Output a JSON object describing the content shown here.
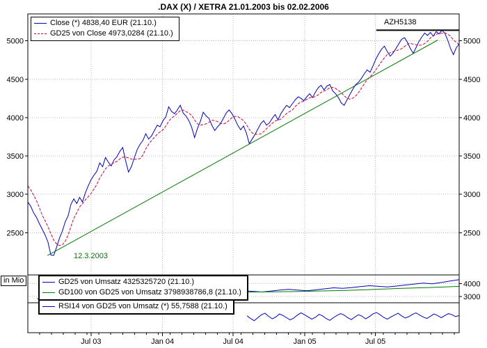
{
  "title": ".DAX (X) / XETRA 21.01.2003 bis 02.02.2006",
  "legend_main": {
    "close_label": "Close (*) 4838,40 EUR (21.10.)",
    "gd25_label": "GD25 von Close 4973,0284 (21.10.)"
  },
  "volume_panel": {
    "unit_label": "in Mio",
    "gd25_label": "GD25 von Umsatz 4325325720 (21.10.)",
    "gd100_label": "GD100 von GD25 von Umsatz 3798938786,8 (21.10.)"
  },
  "rsi_panel": {
    "rsi_label": "RSI14 von GD25 von Umsatz (*) 55,7588 (21.10.)"
  },
  "annotations": {
    "trend_start_date": "12.3.2003",
    "resistance_label": "AZH5138"
  },
  "colors": {
    "close": "#0000bf",
    "gd25": "#cc0033",
    "trend": "#007a00",
    "volume_gd25": "#0000bf",
    "volume_gd100": "#007a00",
    "rsi": "#0000bf",
    "grid": "#b8b8b8",
    "frame": "#000000",
    "resistance": "#000000"
  },
  "x_axis": {
    "months_total": 36.4,
    "ticks": [
      {
        "label": "Jul 03",
        "month": 5.33
      },
      {
        "label": "Jan 04",
        "month": 11.37
      },
      {
        "label": "Jul 04",
        "month": 17.33
      },
      {
        "label": "Jan 05",
        "month": 23.37
      },
      {
        "label": "Jul 05",
        "month": 29.33
      }
    ]
  },
  "chart_data": [
    {
      "type": "line",
      "title": ".DAX (X) / XETRA 21.01.2003 bis 02.02.2006",
      "x_range": [
        "21.01.2003",
        "02.02.2006"
      ],
      "ylim": [
        1950,
        5350
      ],
      "yticks": [
        2500,
        3000,
        3500,
        4000,
        4500,
        5000
      ],
      "series": [
        {
          "name": "Close",
          "color_key": "close",
          "start_month": 0,
          "values": [
            2900,
            2845,
            2760,
            2700,
            2620,
            2545,
            2470,
            2380,
            2210,
            2203,
            2310,
            2430,
            2520,
            2640,
            2720,
            2870,
            2940,
            2880,
            2960,
            2900,
            3020,
            3110,
            3190,
            3250,
            3300,
            3410,
            3360,
            3480,
            3420,
            3370,
            3450,
            3490,
            3560,
            3610,
            3440,
            3290,
            3360,
            3470,
            3580,
            3650,
            3700,
            3790,
            3720,
            3760,
            3830,
            3900,
            3880,
            3960,
            4010,
            4140,
            4080,
            4050,
            4100,
            4160,
            4060,
            4020,
            3960,
            3870,
            3740,
            3860,
            3950,
            4070,
            4020,
            3990,
            3900,
            3830,
            3880,
            3920,
            3990,
            4060,
            4100,
            4050,
            3980,
            3900,
            3840,
            3890,
            3800,
            3660,
            3720,
            3780,
            3850,
            3920,
            3960,
            3900,
            3930,
            3990,
            4040,
            3970,
            4050,
            4110,
            4160,
            4130,
            4180,
            4230,
            4270,
            4250,
            4220,
            4270,
            4310,
            4260,
            4330,
            4390,
            4420,
            4360,
            4410,
            4430,
            4350,
            4310,
            4260,
            4190,
            4160,
            4230,
            4300,
            4370,
            4430,
            4460,
            4510,
            4570,
            4620,
            4590,
            4670,
            4760,
            4830,
            4890,
            4930,
            4860,
            4800,
            4840,
            4900,
            4960,
            5020,
            5040,
            4980,
            4900,
            4838,
            4910,
            4990,
            5050,
            5100,
            5070,
            5110,
            5060,
            5120,
            5090,
            5138,
            5100,
            5010,
            4900,
            4820,
            4910,
            4960
          ]
        },
        {
          "name": "GD25 von Close",
          "color_key": "gd25",
          "derived": "moving_average_of_Close",
          "window": 6,
          "seed": 3150
        }
      ],
      "trendline": {
        "from_month": 1.66,
        "from_value": 2203,
        "to_month": 34.6,
        "to_value": 5010,
        "label": "12.3.2003"
      },
      "resistance": {
        "value": 5138,
        "from_month": 29.4,
        "to_month": 36.4,
        "label": "AZH5138"
      }
    },
    {
      "type": "line",
      "ylabel": "in Mio",
      "ylim": [
        2500,
        4700
      ],
      "yticks": [
        3000,
        4000
      ],
      "series": [
        {
          "name": "GD25 von Umsatz",
          "color_key": "volume_gd25",
          "start_month": 0.8,
          "values": [
            2800,
            3000,
            3200,
            3350,
            3300,
            3250,
            3400,
            3500,
            3450,
            3380,
            3320,
            3400,
            3480,
            3420,
            3360,
            3300,
            3350,
            3420,
            3380,
            3300,
            3250,
            3300,
            3380,
            3450,
            3400,
            3350,
            3420,
            3500,
            3560,
            3500,
            3450,
            3520,
            3600,
            3680,
            3640,
            3700,
            3780,
            3850,
            3800,
            3750,
            3820,
            3900,
            3980,
            4050,
            4000,
            4100,
            4220,
            4325
          ]
        },
        {
          "name": "GD100 von GD25 von Umsatz",
          "color_key": "volume_gd100",
          "start_month": 4.6,
          "values": [
            3000,
            3100,
            3200,
            3280,
            3320,
            3340,
            3360,
            3380,
            3390,
            3385,
            3375,
            3370,
            3375,
            3385,
            3390,
            3385,
            3375,
            3365,
            3360,
            3355,
            3350,
            3345,
            3350,
            3360,
            3370,
            3375,
            3380,
            3390,
            3405,
            3420,
            3435,
            3450,
            3465,
            3480,
            3500,
            3520,
            3545,
            3570,
            3595,
            3620,
            3640,
            3660,
            3680,
            3700,
            3720,
            3745,
            3770,
            3799
          ]
        }
      ]
    },
    {
      "type": "line",
      "ylim": [
        10,
        90
      ],
      "series": [
        {
          "name": "RSI14 von GD25 von Umsatz",
          "color_key": "rsi",
          "start_month": 18.5,
          "values": [
            55,
            48,
            42,
            50,
            58,
            62,
            54,
            47,
            52,
            60,
            56,
            50,
            44,
            49,
            57,
            63,
            58,
            52,
            46,
            51,
            59,
            55,
            48,
            43,
            50,
            56,
            61,
            57,
            50,
            45,
            52,
            58,
            54,
            47,
            53,
            60,
            64,
            58,
            51,
            46,
            52,
            57,
            62,
            55,
            49,
            53,
            59,
            63,
            57,
            52,
            48,
            54,
            60,
            56,
            50,
            55.8,
            61,
            58,
            53,
            56
          ]
        }
      ]
    }
  ]
}
